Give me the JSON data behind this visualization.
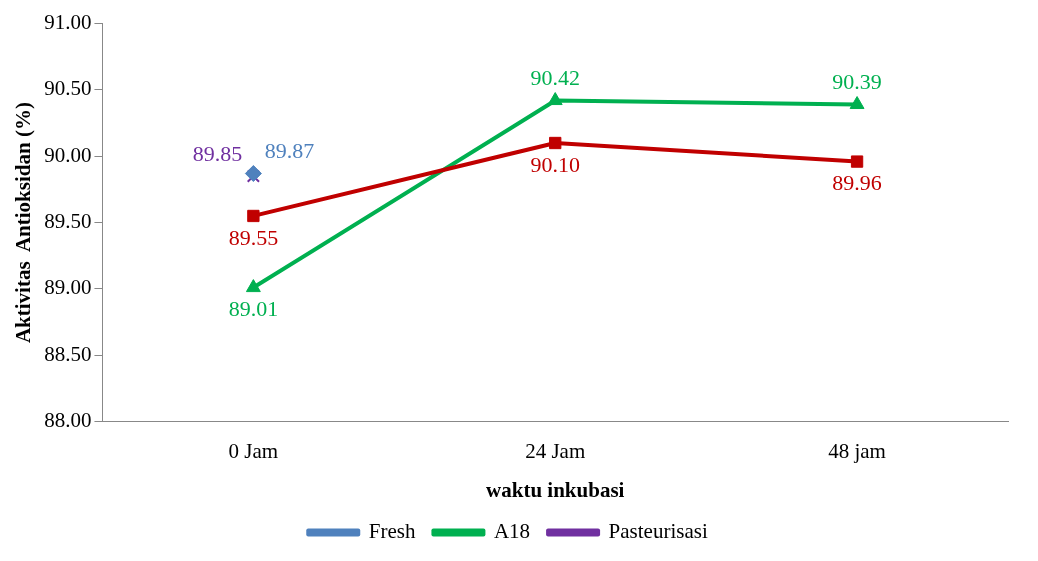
{
  "chart_data": {
    "type": "line",
    "xlabel": "waktu inkubasi",
    "ylabel": "Aktivitas  Antioksidan (%)",
    "categories": [
      "0 Jam",
      "24 Jam",
      "48 jam"
    ],
    "series": [
      {
        "name": "Fresh",
        "color": "#4f81bd",
        "marker": "diamond",
        "values": [
          89.87,
          null,
          null
        ],
        "value_labels": [
          "89.87",
          null,
          null
        ]
      },
      {
        "color": "#c00000",
        "marker": "square",
        "values": [
          89.55,
          90.1,
          89.96
        ],
        "value_labels": [
          "89.55",
          "90.10",
          "89.96"
        ]
      },
      {
        "name": "A18",
        "color": "#00b050",
        "marker": "triangle",
        "values": [
          89.01,
          90.42,
          90.39
        ],
        "value_labels": [
          "89.01",
          "90.42",
          "90.39"
        ]
      },
      {
        "name": "Pasteurisasi",
        "color": "#7030a0",
        "marker": "cross",
        "values": [
          89.85,
          null,
          null
        ],
        "value_labels": [
          "89.85",
          null,
          null
        ]
      }
    ],
    "ylim": [
      88,
      91
    ],
    "yticks": [
      {
        "value": 88,
        "label": "88.00"
      },
      {
        "value": 88.5,
        "label": "88.50"
      },
      {
        "value": 89,
        "label": "89.00"
      },
      {
        "value": 89.5,
        "label": "89.50"
      },
      {
        "value": 90,
        "label": "90.00"
      },
      {
        "value": 90.5,
        "label": "90.50"
      },
      {
        "value": 91,
        "label": "91.00"
      }
    ],
    "grid": false,
    "legend": "bottom"
  }
}
